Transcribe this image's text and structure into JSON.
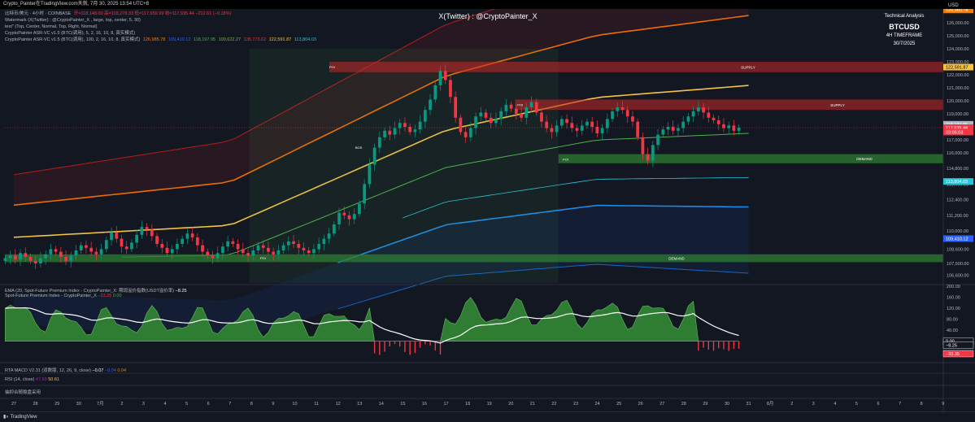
{
  "topbar": {
    "text": "Crypto_Painter在TradingView.com天就, 7月 30, 2025 13:54 UTC+8"
  },
  "legend": {
    "line1": "比特币/美元 · 4小时 · COINBASE",
    "line1_ohlc": "开=118,148.00  高=118,278.33  低=117,659.99  收=117,935.44  −212.61 (−0.18%)",
    "line2": "Watermark (X(Twitter) : @CryptoPainter_X , large, top, center, 5, 30)",
    "line3": "text\" (Top, Center, Normal, Top, Right, Normal)",
    "line4": "CryptoPainter ASR-VC v1.5 (BTC(调用), 5, 2, 16, 10, 8, 真实模式)",
    "line5": "CryptoPainter ASR-VC v1.5 (BTC(调用), 100, 2, 16, 10, 8, 真实模式)",
    "line5_vals": [
      "126,985.78",
      "109,410.12",
      "118,197.95",
      "100,622.27",
      "135,773.62",
      "122,591.87",
      "113,804.03"
    ]
  },
  "watermark": "X(Twitter) : @CryptoPainter_X",
  "ta_box": {
    "label": "Technical Analysis",
    "symbol": "BTCUSD",
    "timeframe": "4H TIMEFRAME",
    "date": "30/7/2025"
  },
  "axis": {
    "currency": "USD"
  },
  "zones": [
    {
      "label": "SUPPLY",
      "from": 122200,
      "to": 123000,
      "start_x": 14.6
    },
    {
      "label": "SUPPLY",
      "from": 119300,
      "to": 120100,
      "start_x": 23.2
    },
    {
      "label": "DEMAND",
      "from": 115200,
      "to": 115900,
      "start_x": 25.2
    },
    {
      "label": "DEMAND",
      "from": 107600,
      "to": 108200,
      "start_x": -2
    }
  ],
  "small_labels": [
    "POI",
    "POI",
    "POI",
    "BOS",
    "POI"
  ],
  "price_badges": [
    {
      "text": "126,985.78",
      "value": 126985.78,
      "color": "#f57c00"
    },
    {
      "text": "122,591.87",
      "value": 122591.87,
      "color": "#f5c242"
    },
    {
      "text": "118,197.95",
      "value": 118197.95,
      "color": "#b2b5be"
    },
    {
      "text": "117,935.44",
      "value": 117935.44,
      "color": "#f23645"
    },
    {
      "text": "03:05:03",
      "value": 117600,
      "color": "#f23645"
    },
    {
      "text": "113,804.03",
      "value": 113804.03,
      "color": "#26c6da"
    },
    {
      "text": "109,410.12",
      "value": 109410.12,
      "color": "#2962ff"
    }
  ],
  "sub_badges": [
    {
      "text": "0.00",
      "value": 0,
      "color": "#ffffff"
    },
    {
      "text": "−8.25",
      "value": -8.25,
      "color": "#ffffff"
    },
    {
      "text": "−33.35",
      "value": -33.35,
      "color": "#f23645"
    }
  ],
  "spot_legend": {
    "line1": "EMA (20, Spot-Future Premium Index - CryptoPainter_X: 期现溢价指数(USDT溢价率)",
    "line1_val": "−8.25",
    "line2": "Spot-Future Premium Index - CryptoPainter_X",
    "line2_vals": [
      "−33.35",
      "0.00"
    ]
  },
  "macd_label": {
    "text": "RTA MACD V2.31 (双数版, 12, 26, 9, close)",
    "vals": [
      "−0.07",
      "−0.04",
      "0.04"
    ]
  },
  "rsi_label": {
    "text": "RSI (14, close)",
    "vals": [
      "47.99",
      "50.61"
    ]
  },
  "extra_label": "抽抑合随稳盘采用",
  "footer": {
    "brand": "TradingView"
  },
  "chart_data": {
    "type": "candlestick",
    "price_axis": {
      "min": 106000,
      "max": 127000,
      "step": 1200,
      "ticks": [
        "126,000.00",
        "125,000.00",
        "124,000.00",
        "123,000.00",
        "122,000.00",
        "121,000.00",
        "120,000.00",
        "119,000.00",
        "118,000.00",
        "117,000.00",
        "116,000.00",
        "114,800.00",
        "113,600.00",
        "112,400.00",
        "111,200.00",
        "110,000.00",
        "108,600.00",
        "107,500.00",
        "106,600.00"
      ]
    },
    "spot_axis": {
      "min": -60,
      "max": 200,
      "ticks": [
        "200.00",
        "160.00",
        "120.00",
        "80.00",
        "40.00",
        "0.00"
      ]
    },
    "x_ticks": [
      "27",
      "28",
      "29",
      "30",
      "7月",
      "2",
      "3",
      "4",
      "5",
      "6",
      "7",
      "8",
      "9",
      "10",
      "11",
      "12",
      "13",
      "14",
      "15",
      "16",
      "17",
      "18",
      "19",
      "20",
      "21",
      "22",
      "23",
      "24",
      "25",
      "26",
      "27",
      "28",
      "29",
      "30",
      "31",
      "8月",
      "2",
      "3",
      "4",
      "5",
      "6",
      "7",
      "8",
      "9"
    ],
    "ohlc_4h_closes": [
      107900,
      108100,
      107800,
      108300,
      108000,
      107700,
      107500,
      107900,
      108200,
      108600,
      108400,
      108000,
      107700,
      108100,
      108500,
      108900,
      108700,
      108400,
      108200,
      108600,
      109300,
      109900,
      109400,
      108800,
      108600,
      109100,
      109700,
      110300,
      110100,
      109600,
      109000,
      108700,
      108300,
      108600,
      109000,
      109400,
      109800,
      109500,
      108900,
      108400,
      108100,
      107900,
      108300,
      108800,
      109200,
      109000,
      108600,
      108300,
      108100,
      108500,
      108900,
      108700,
      108400,
      108200,
      108500,
      108900,
      109200,
      109000,
      108700,
      108500,
      108300,
      108600,
      109000,
      109400,
      109800,
      110500,
      111400,
      111200,
      110900,
      111300,
      112100,
      113600,
      115100,
      116400,
      117200,
      117700,
      117400,
      117900,
      118300,
      118000,
      117600,
      117800,
      118400,
      119300,
      120100,
      121200,
      122300,
      121600,
      120300,
      118700,
      117600,
      117200,
      117900,
      118800,
      119100,
      118700,
      118300,
      118600,
      119200,
      119700,
      119400,
      119000,
      118700,
      119500,
      119900,
      119100,
      118400,
      117900,
      117600,
      118100,
      118600,
      118300,
      117900,
      117700,
      118100,
      118400,
      118000,
      117500,
      117900,
      118600,
      119200,
      119500,
      119300,
      118800,
      118400,
      117200,
      115900,
      115400,
      116600,
      117400,
      117800,
      118000,
      117700,
      117900,
      118400,
      118800,
      119200,
      119500,
      119100,
      118700,
      118500,
      118200,
      117900,
      118100,
      117700,
      117935
    ]
  }
}
